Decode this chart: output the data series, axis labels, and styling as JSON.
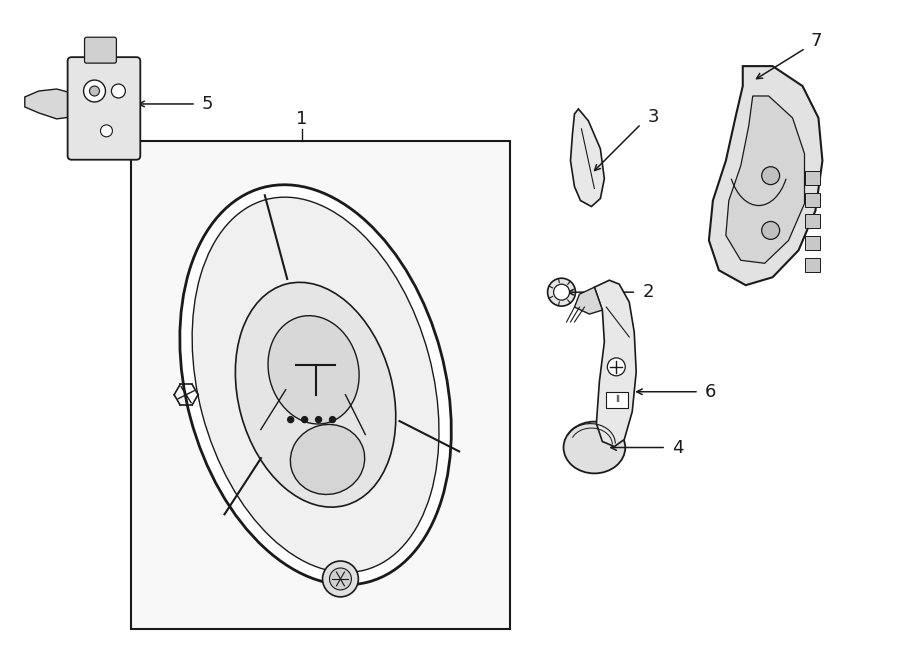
{
  "bg_color": "#ffffff",
  "line_color": "#1a1a1a",
  "fig_width": 9.0,
  "fig_height": 6.61,
  "dpi": 100,
  "font_size_label": 13
}
